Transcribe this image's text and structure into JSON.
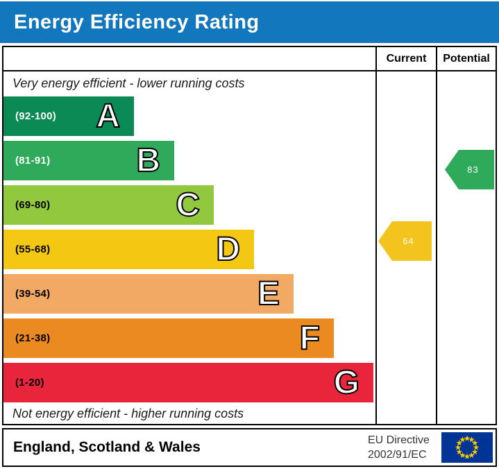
{
  "title": "Energy Efficiency Rating",
  "banner_color": "#1277bd",
  "columns": {
    "current": "Current",
    "potential": "Potential"
  },
  "top_note": "Very energy efficient - lower running costs",
  "bottom_note": "Not energy efficient - higher running costs",
  "footer": {
    "region": "England, Scotland & Wales",
    "directive_line1": "EU Directive",
    "directive_line2": "2002/91/EC",
    "eu_flag_bg": "#003595",
    "eu_flag_star": "#ffcc00"
  },
  "chart_data": {
    "type": "bar",
    "title": "Energy Efficiency Rating",
    "bands": [
      {
        "letter": "A",
        "range_label": "(92-100)",
        "min": 92,
        "max": 100,
        "color": "#0c8a56",
        "label_color": "#ffffff"
      },
      {
        "letter": "B",
        "range_label": "(81-91)",
        "min": 81,
        "max": 91,
        "color": "#2faa5b",
        "label_color": "#ffffff"
      },
      {
        "letter": "C",
        "range_label": "(69-80)",
        "min": 69,
        "max": 80,
        "color": "#92c83e",
        "label_color": "#000000"
      },
      {
        "letter": "D",
        "range_label": "(55-68)",
        "min": 55,
        "max": 68,
        "color": "#f3c712",
        "label_color": "#000000"
      },
      {
        "letter": "E",
        "range_label": "(39-54)",
        "min": 39,
        "max": 54,
        "color": "#f2a964",
        "label_color": "#000000"
      },
      {
        "letter": "F",
        "range_label": "(21-38)",
        "min": 21,
        "max": 38,
        "color": "#ec8a22",
        "label_color": "#000000"
      },
      {
        "letter": "G",
        "range_label": "(1-20)",
        "min": 1,
        "max": 20,
        "color": "#e9253c",
        "label_color": "#000000"
      }
    ],
    "markers": {
      "current": {
        "value": 64,
        "band": "D",
        "color": "#f2c41d"
      },
      "potential": {
        "value": 83,
        "band": "B",
        "color": "#2faa5b"
      }
    }
  }
}
